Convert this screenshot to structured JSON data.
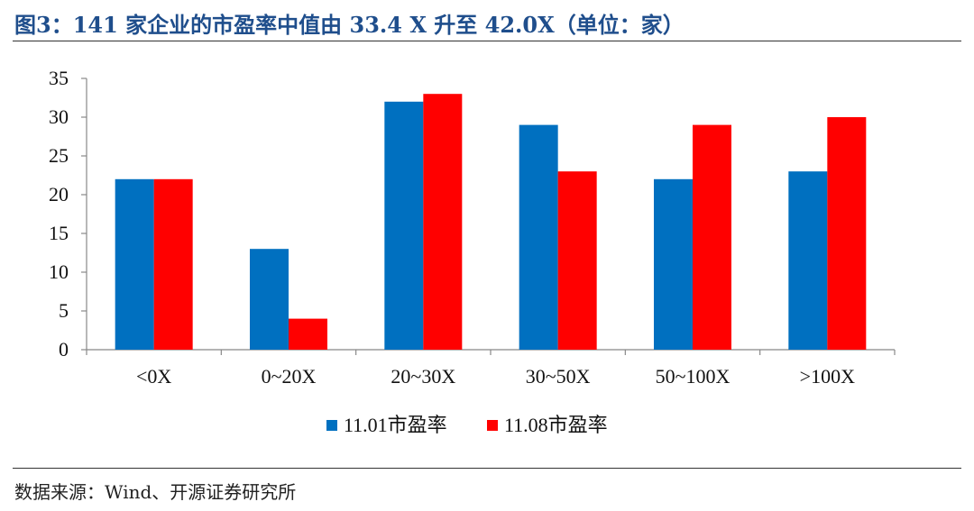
{
  "title": "图3：141 家企业的市盈率中值由 33.4 X 升至 42.0X（单位：家）",
  "source": "数据来源：Wind、开源证券研究所",
  "chart_data": {
    "type": "bar",
    "categories": [
      "<0X",
      "0~20X",
      "20~30X",
      "30~50X",
      "50~100X",
      ">100X"
    ],
    "series": [
      {
        "name": "11.01市盈率",
        "color": "#0070c0",
        "values": [
          22,
          13,
          32,
          29,
          22,
          23
        ]
      },
      {
        "name": "11.08市盈率",
        "color": "#ff0000",
        "values": [
          22,
          4,
          33,
          23,
          29,
          30
        ]
      }
    ],
    "ylim": [
      0,
      35
    ],
    "yticks": [
      0,
      5,
      10,
      15,
      20,
      25,
      30,
      35
    ],
    "grid": false,
    "legend_position": "bottom",
    "xlabel": "",
    "ylabel": ""
  }
}
